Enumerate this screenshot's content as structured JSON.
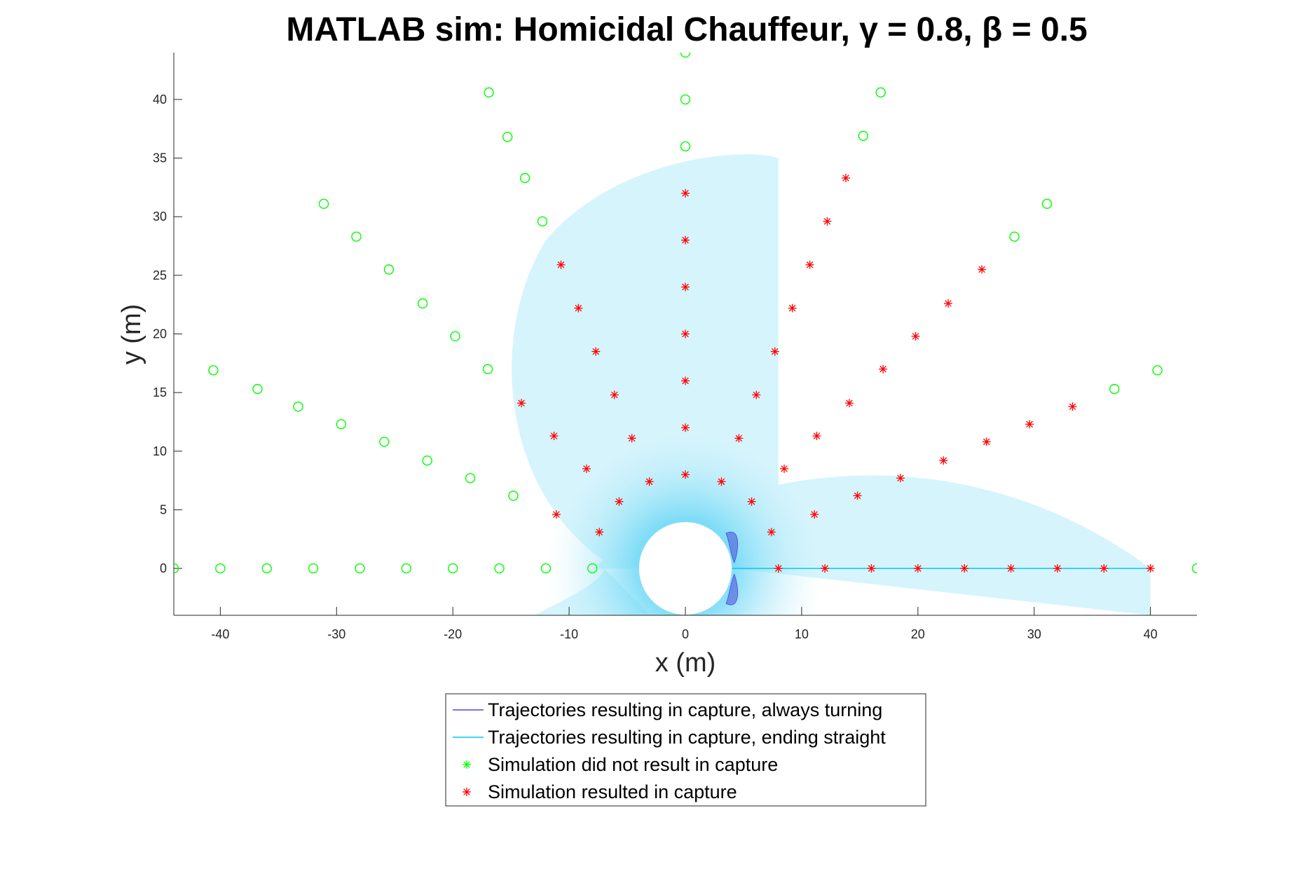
{
  "chart_data": {
    "type": "scatter",
    "title": "MATLAB sim: Homicidal Chauffeur, γ = 0.8, β = 0.5",
    "xlabel": "x (m)",
    "ylabel": "y (m)",
    "xlim": [
      -44,
      44
    ],
    "ylim": [
      -4,
      44
    ],
    "xticks": [
      -40,
      -30,
      -20,
      -10,
      0,
      10,
      20,
      30,
      40
    ],
    "yticks": [
      0,
      5,
      10,
      15,
      20,
      25,
      30,
      35,
      40
    ],
    "grid": false,
    "legend_position": "bottom-center",
    "series": [
      {
        "name": "Trajectories resulting in capture, always turning",
        "color": "#4a4ad8",
        "marker": "line"
      },
      {
        "name": "Trajectories resulting in capture, ending straight",
        "color": "#00c8ff",
        "marker": "line"
      },
      {
        "name": "Simulation did not result in capture",
        "color": "#00ff00",
        "marker": "circle",
        "legend_marker": "asterisk",
        "points": [
          [
            -44,
            0
          ],
          [
            -40,
            0
          ],
          [
            -36,
            0
          ],
          [
            -32,
            0
          ],
          [
            -28,
            0
          ],
          [
            -24,
            0
          ],
          [
            -20,
            0
          ],
          [
            -16,
            0
          ],
          [
            -12,
            0
          ],
          [
            -8,
            0
          ],
          [
            44,
            0
          ],
          [
            -40.6,
            16.9
          ],
          [
            -36.8,
            15.3
          ],
          [
            -33.3,
            13.8
          ],
          [
            -29.6,
            12.3
          ],
          [
            -25.9,
            10.8
          ],
          [
            -22.2,
            9.2
          ],
          [
            -18.5,
            7.7
          ],
          [
            -14.8,
            6.2
          ],
          [
            -31.1,
            31.1
          ],
          [
            -28.3,
            28.3
          ],
          [
            -25.5,
            25.5
          ],
          [
            -22.6,
            22.6
          ],
          [
            -19.8,
            19.8
          ],
          [
            -17,
            17
          ],
          [
            -16.9,
            40.6
          ],
          [
            -15.3,
            36.8
          ],
          [
            -13.8,
            33.3
          ],
          [
            -12.3,
            29.6
          ],
          [
            0,
            44
          ],
          [
            0,
            40
          ],
          [
            0,
            36
          ],
          [
            16.8,
            40.6
          ],
          [
            15.3,
            36.9
          ],
          [
            31.1,
            31.1
          ],
          [
            28.3,
            28.3
          ],
          [
            40.6,
            16.9
          ],
          [
            36.9,
            15.3
          ]
        ]
      },
      {
        "name": "Simulation resulted in capture",
        "color": "#ff0000",
        "marker": "asterisk",
        "points": [
          [
            8,
            0
          ],
          [
            12,
            0
          ],
          [
            16,
            0
          ],
          [
            20,
            0
          ],
          [
            24,
            0
          ],
          [
            28,
            0
          ],
          [
            32,
            0
          ],
          [
            36,
            0
          ],
          [
            40,
            0
          ],
          [
            -7.4,
            3.1
          ],
          [
            -11.1,
            4.6
          ],
          [
            -5.7,
            5.7
          ],
          [
            -8.5,
            8.5
          ],
          [
            -11.3,
            11.3
          ],
          [
            -14.1,
            14.1
          ],
          [
            -3.1,
            7.4
          ],
          [
            -4.6,
            11.1
          ],
          [
            -6.1,
            14.8
          ],
          [
            -7.7,
            18.5
          ],
          [
            -9.2,
            22.2
          ],
          [
            -10.7,
            25.9
          ],
          [
            0,
            8
          ],
          [
            0,
            12
          ],
          [
            0,
            16
          ],
          [
            0,
            20
          ],
          [
            0,
            24
          ],
          [
            0,
            28
          ],
          [
            0,
            32
          ],
          [
            3.1,
            7.4
          ],
          [
            4.6,
            11.1
          ],
          [
            6.1,
            14.8
          ],
          [
            7.7,
            18.5
          ],
          [
            9.2,
            22.2
          ],
          [
            10.7,
            25.9
          ],
          [
            12.2,
            29.6
          ],
          [
            13.8,
            33.3
          ],
          [
            5.7,
            5.7
          ],
          [
            8.5,
            8.5
          ],
          [
            11.3,
            11.3
          ],
          [
            14.1,
            14.1
          ],
          [
            17,
            17
          ],
          [
            19.8,
            19.8
          ],
          [
            22.6,
            22.6
          ],
          [
            25.5,
            25.5
          ],
          [
            7.4,
            3.1
          ],
          [
            11.1,
            4.6
          ],
          [
            14.8,
            6.2
          ],
          [
            18.5,
            7.7
          ],
          [
            22.2,
            9.2
          ],
          [
            25.9,
            10.8
          ],
          [
            29.6,
            12.3
          ],
          [
            33.3,
            13.8
          ]
        ]
      }
    ]
  }
}
